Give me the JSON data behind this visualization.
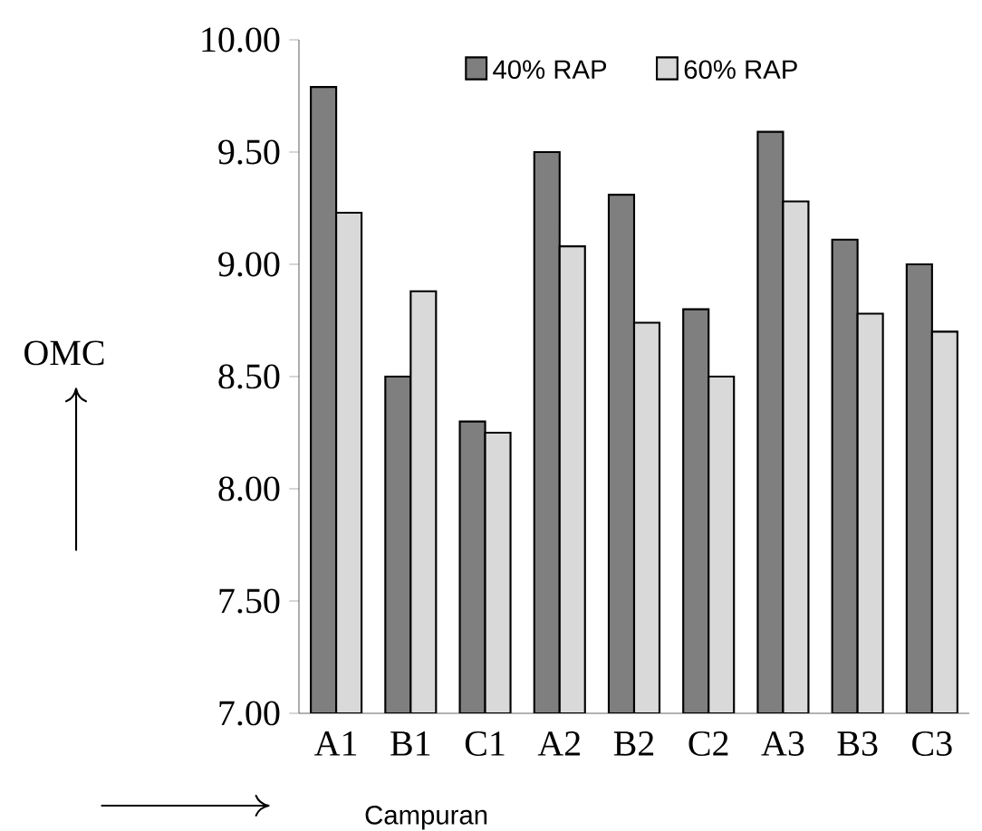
{
  "chart_data": {
    "type": "bar",
    "xlabel": "Campuran",
    "ylabel": "OMC",
    "categories": [
      "A1",
      "B1",
      "C1",
      "A2",
      "B2",
      "C2",
      "A3",
      "B3",
      "C3"
    ],
    "series": [
      {
        "name": "40% RAP",
        "color": "#7f7f7f",
        "values": [
          9.79,
          8.5,
          8.3,
          9.5,
          9.31,
          8.8,
          9.59,
          9.11,
          9.0
        ]
      },
      {
        "name": "60% RAP",
        "color": "#d9d9d9",
        "values": [
          9.23,
          8.88,
          8.25,
          9.08,
          8.74,
          8.5,
          9.28,
          8.78,
          8.7
        ]
      }
    ],
    "ylim": [
      7,
      10
    ],
    "yticks": [
      {
        "value": 7,
        "label": "7.00"
      },
      {
        "value": 7.5,
        "label": "7.50"
      },
      {
        "value": 8,
        "label": "8.00"
      },
      {
        "value": 8.5,
        "label": "8.50"
      },
      {
        "value": 9,
        "label": "9.00"
      },
      {
        "value": 9.5,
        "label": "9.50"
      },
      {
        "value": 10,
        "label": "10.00"
      }
    ],
    "legend": "top",
    "grid": false
  }
}
